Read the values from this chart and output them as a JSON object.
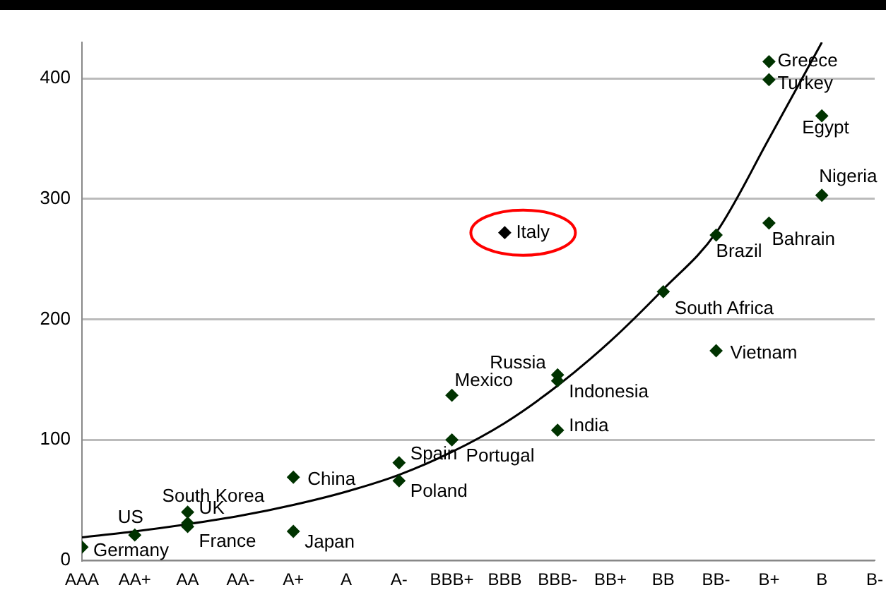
{
  "chart_data": {
    "type": "scatter",
    "categories": [
      "AAA",
      "AA+",
      "AA",
      "AA-",
      "A+",
      "A",
      "A-",
      "BBB+",
      "BBB",
      "BBB-",
      "BB+",
      "BB",
      "BB-",
      "B+",
      "B",
      "B-"
    ],
    "ylim": [
      0,
      430
    ],
    "yticks": [
      0,
      100,
      200,
      300,
      400
    ],
    "grid": "y",
    "legend": false,
    "marker": "diamond",
    "series": [
      {
        "color": "#003300",
        "x": [
          "AAA",
          "AA+",
          "AA",
          "AA",
          "AA",
          "A+",
          "A+",
          "A-",
          "A-",
          "BBB+",
          "BBB+",
          "BBB",
          "BBB-",
          "BBB-",
          "BBB-",
          "BB",
          "BB-",
          "BB-",
          "B+",
          "B+",
          "B+",
          "B",
          "B"
        ],
        "values": [
          11,
          21,
          40,
          31,
          28,
          69,
          24,
          81,
          66,
          137,
          100,
          272,
          154,
          149,
          108,
          223,
          270,
          174,
          414,
          399,
          280,
          369,
          303
        ],
        "colors": [
          "#003300",
          "#003300",
          "#003300",
          "#003300",
          "#003300",
          "#003300",
          "#003300",
          "#003300",
          "#003300",
          "#003300",
          "#003300",
          "#000000",
          "#003300",
          "#003300",
          "#003300",
          "#003300",
          "#003300",
          "#003300",
          "#003300",
          "#003300",
          "#003300",
          "#003300",
          "#003300"
        ]
      },
      {
        "type": "line",
        "color": "#000000",
        "marker": "none",
        "x": [
          "AAA",
          "AA+",
          "AA",
          "AA-",
          "A+",
          "A",
          "A-",
          "BBB+",
          "BBB",
          "BBB-",
          "BB+",
          "BB",
          "BB-",
          "B+",
          "B"
        ],
        "values": [
          19,
          24,
          30,
          37,
          46,
          57,
          71,
          90,
          114,
          145,
          182,
          225,
          272,
          350,
          430
        ]
      }
    ],
    "annotations": [
      {
        "text": "Germany",
        "x": "AAA",
        "y": 11
      },
      {
        "text": "US",
        "x": "AA+",
        "y": 21
      },
      {
        "text": "South Korea",
        "x": "AA",
        "y": 40
      },
      {
        "text": "UK",
        "x": "AA",
        "y": 31
      },
      {
        "text": "France",
        "x": "AA",
        "y": 28
      },
      {
        "text": "China",
        "x": "A+",
        "y": 69
      },
      {
        "text": "Japan",
        "x": "A+",
        "y": 24
      },
      {
        "text": "Spain",
        "x": "A-",
        "y": 81
      },
      {
        "text": "Poland",
        "x": "A-",
        "y": 66
      },
      {
        "text": "Mexico",
        "x": "BBB+",
        "y": 137
      },
      {
        "text": "Portugal",
        "x": "BBB+",
        "y": 100
      },
      {
        "text": "Italy",
        "x": "BBB",
        "y": 272
      },
      {
        "text": "Russia",
        "x": "BBB-",
        "y": 154
      },
      {
        "text": "Indonesia",
        "x": "BBB-",
        "y": 149
      },
      {
        "text": "India",
        "x": "BBB-",
        "y": 108
      },
      {
        "text": "South Africa",
        "x": "BB",
        "y": 223
      },
      {
        "text": "Brazil",
        "x": "BB-",
        "y": 270
      },
      {
        "text": "Vietnam",
        "x": "BB-",
        "y": 174
      },
      {
        "text": "Greece",
        "x": "B+",
        "y": 414
      },
      {
        "text": "Turkey",
        "x": "B+",
        "y": 399
      },
      {
        "text": "Bahrain",
        "x": "B+",
        "y": 280
      },
      {
        "text": "Egypt",
        "x": "B",
        "y": 369
      },
      {
        "text": "Nigeria",
        "x": "B",
        "y": 303
      }
    ]
  }
}
